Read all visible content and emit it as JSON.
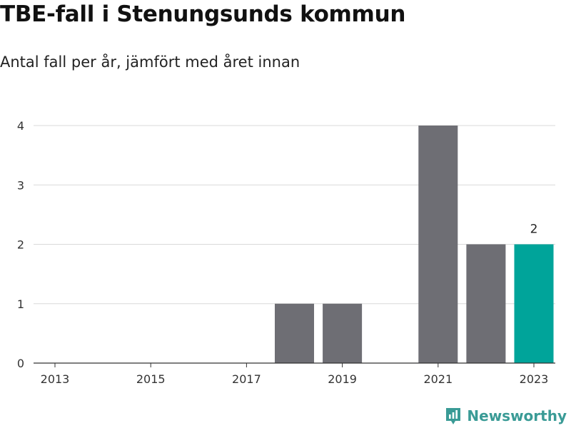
{
  "header": {
    "title": "TBE-fall i Stenungsunds kommun",
    "subtitle": "Antal fall per år, jämfört med året innan"
  },
  "brand": {
    "name": "Newsworthy",
    "icon": "newsworthy-logo-icon",
    "color": "#3a9b96"
  },
  "colors": {
    "bar": "#6e6e74",
    "highlight": "#00a49a",
    "grid": "#d9d9d9",
    "axis": "#333333"
  },
  "chart_data": {
    "type": "bar",
    "categories": [
      "2013",
      "2014",
      "2015",
      "2016",
      "2017",
      "2018",
      "2019",
      "2020",
      "2021",
      "2022",
      "2023"
    ],
    "values": [
      0,
      0,
      0,
      0,
      0,
      1,
      1,
      0,
      4,
      2,
      2
    ],
    "highlight_category": "2023",
    "data_labels": [
      {
        "category": "2023",
        "text": "2"
      }
    ],
    "x_tick_labels": [
      "2013",
      "2015",
      "2017",
      "2019",
      "2021",
      "2023"
    ],
    "y_ticks": [
      0,
      1,
      2,
      3,
      4
    ],
    "ylim": [
      0,
      4
    ],
    "xlabel": "",
    "ylabel": "",
    "grid": true,
    "legend": "none"
  }
}
